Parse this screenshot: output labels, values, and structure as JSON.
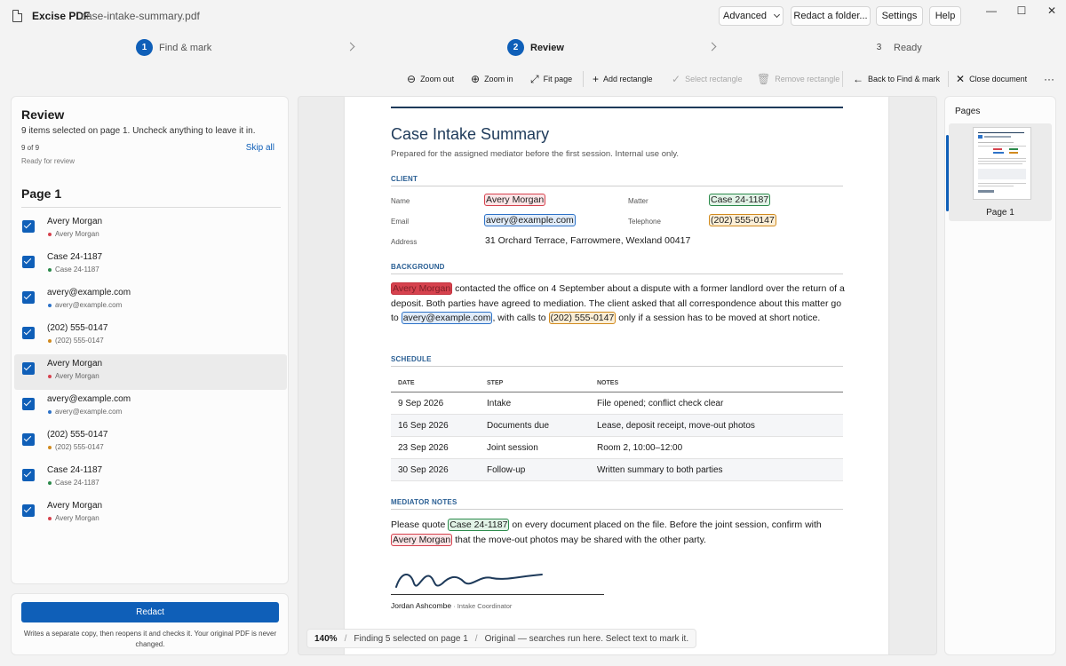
{
  "app": {
    "name": "Excise PDF",
    "file": "case-intake-summary.pdf",
    "buttons": {
      "advanced": "Advanced",
      "redact_folder": "Redact a folder...",
      "settings": "Settings",
      "help": "Help"
    },
    "window_controls": {
      "minimize": "—",
      "maximize": "☐",
      "close": "✕"
    }
  },
  "steps": [
    {
      "num": "1",
      "label": "Find & mark"
    },
    {
      "num": "2",
      "label": "Review"
    },
    {
      "num": "3",
      "label": "Ready"
    }
  ],
  "toolbar": {
    "zoom_out": "Zoom out",
    "zoom_in": "Zoom in",
    "fit_page": "Fit page",
    "add_rectangle": "Add rectangle",
    "select_rectangle": "Select rectangle",
    "remove_rectangle": "Remove rectangle",
    "back": "Back to Find & mark",
    "close_document": "Close document",
    "more": "···"
  },
  "review": {
    "title": "Review",
    "description": "9 items selected on page 1. Uncheck anything to leave it in.",
    "count": "9 of 9",
    "skip_all": "Skip all",
    "status": "Ready for review",
    "page_heading": "Page 1",
    "items": [
      {
        "title": "Avery Morgan",
        "sub": "Avery Morgan",
        "color": "#d6424e",
        "checked": true
      },
      {
        "title": "Case 24-1187",
        "sub": "Case 24-1187",
        "color": "#2b8a4b",
        "checked": true
      },
      {
        "title": "avery@example.com",
        "sub": "avery@example.com",
        "color": "#2e73c8",
        "checked": true
      },
      {
        "title": "(202) 555-0147",
        "sub": "(202) 555-0147",
        "color": "#d18a1e",
        "checked": true
      },
      {
        "title": "Avery Morgan",
        "sub": "Avery Morgan",
        "color": "#d6424e",
        "checked": true
      },
      {
        "title": "avery@example.com",
        "sub": "avery@example.com",
        "color": "#2e73c8",
        "checked": true
      },
      {
        "title": "(202) 555-0147",
        "sub": "(202) 555-0147",
        "color": "#d18a1e",
        "checked": true
      },
      {
        "title": "Case 24-1187",
        "sub": "Case 24-1187",
        "color": "#2b8a4b",
        "checked": true
      },
      {
        "title": "Avery Morgan",
        "sub": "Avery Morgan",
        "color": "#d6424e",
        "checked": true
      }
    ]
  },
  "redact": {
    "button": "Redact",
    "note": "Writes a separate copy, then reopens it and checks it. Your original PDF is never changed."
  },
  "document": {
    "title": "Case Intake Summary",
    "subtitle": "Prepared for the assigned mediator before the first session. Internal use only.",
    "client": {
      "heading": "CLIENT",
      "name_label": "Name",
      "name": "Avery Morgan",
      "matter_label": "Matter",
      "matter": "Case 24-1187",
      "email_label": "Email",
      "email": "avery@example.com",
      "telephone_label": "Telephone",
      "telephone": "(202) 555-0147",
      "address_label": "Address",
      "address": "31 Orchard Terrace, Farrowmere, Wexland 00417"
    },
    "background": {
      "heading": "BACKGROUND",
      "name": "Avery Morgan",
      "t1": " contacted the office on 4 September about a dispute with a former landlord over the return of a deposit. Both parties have agreed to mediation. The client asked that all correspondence about this matter go to ",
      "email": "avery@example.com",
      "t2": ", with calls to ",
      "phone": "(202) 555-0147",
      "t3": " only if a session has to be moved at short notice."
    },
    "schedule": {
      "heading": "SCHEDULE",
      "columns": [
        "DATE",
        "STEP",
        "NOTES"
      ],
      "rows": [
        [
          "9 Sep 2026",
          "Intake",
          "File opened; conflict check clear"
        ],
        [
          "16 Sep 2026",
          "Documents due",
          "Lease, deposit receipt, move-out photos"
        ],
        [
          "23 Sep 2026",
          "Joint session",
          "Room 2, 10:00–12:00"
        ],
        [
          "30 Sep 2026",
          "Follow-up",
          "Written summary to both parties"
        ]
      ]
    },
    "notes": {
      "heading": "MEDIATOR NOTES",
      "t1": "Please quote ",
      "case": "Case 24-1187",
      "t2": " on every document placed on the file. Before the joint session, confirm with ",
      "name": "Avery Morgan",
      "t3": " that the move-out photos may be shared with the other party."
    },
    "signature": {
      "name": "Jordan Ashcombe",
      "role": " · Intake Coordinator"
    }
  },
  "statusbar": {
    "zoom": "140%",
    "sep": "/",
    "finding": "Finding 5 selected on page 1",
    "mode": "Original — searches run here. Select text to mark it."
  },
  "pages": {
    "title": "Pages",
    "thumb_label": "Page 1"
  }
}
